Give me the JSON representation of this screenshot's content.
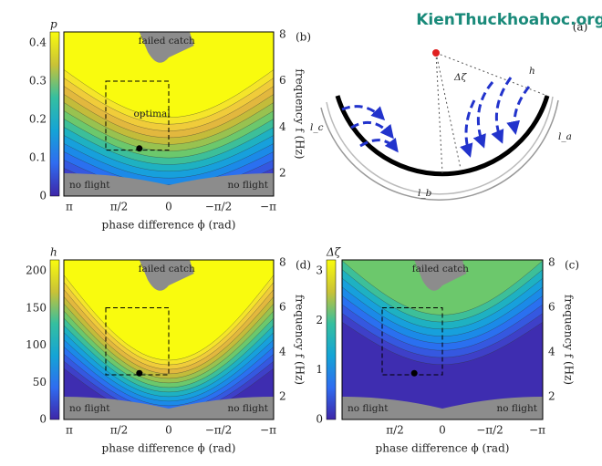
{
  "watermark": "KienThuckhoahoc.org",
  "panels": [
    {
      "label": "(b)",
      "colorbar_label": "p",
      "colorbar_ticks": [
        "0",
        "0.1",
        "0.2",
        "0.3",
        "0.4"
      ],
      "y_ticks": [
        "2",
        "4",
        "6",
        "8"
      ],
      "y_label": "frequency f (Hz)",
      "x_ticks": [
        "π",
        "π/2",
        "0",
        "−π/2",
        "−π"
      ],
      "x_label": "phase difference ϕ (rad)",
      "annotations": [
        "failed catch",
        "optimal",
        "no flight",
        "no flight"
      ]
    },
    {
      "label": "(d)",
      "colorbar_label": "h",
      "colorbar_ticks": [
        "0",
        "50",
        "100",
        "150",
        "200"
      ],
      "y_ticks": [
        "2",
        "4",
        "6",
        "8"
      ],
      "y_label": "frequency f (Hz)",
      "x_ticks": [
        "π",
        "π/2",
        "0",
        "−π/2",
        "−π"
      ],
      "x_label": "phase difference ϕ (rad)",
      "annotations": [
        "failed catch",
        "no flight",
        "no flight"
      ]
    },
    {
      "label": "(c)",
      "colorbar_label": "Δζ",
      "colorbar_ticks": [
        "0",
        "1",
        "2",
        "3"
      ],
      "y_ticks": [
        "2",
        "4",
        "6",
        "8"
      ],
      "y_label": "frequency f (Hz)",
      "x_ticks": [
        "π/2",
        "0",
        "−π/2",
        "−π"
      ],
      "x_label": "phase difference ϕ (rad)",
      "annotations": [
        "failed catch",
        "no flight",
        "no flight"
      ]
    }
  ],
  "diagram": {
    "label": "(a)",
    "labels": [
      "h",
      "Δζ",
      "l_c",
      "l_a",
      "l_b"
    ]
  }
}
